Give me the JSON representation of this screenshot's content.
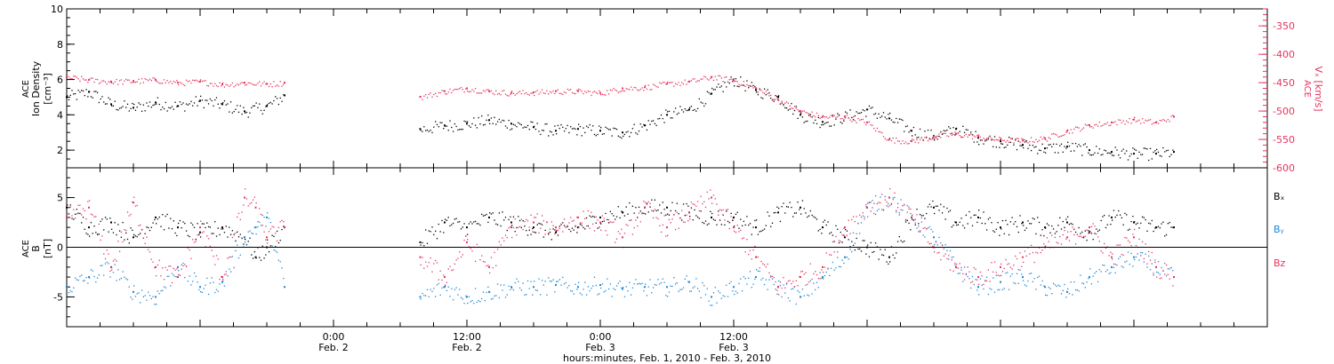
{
  "chart_data": [
    {
      "type": "scatter",
      "panel": "top",
      "ylabel_left": [
        "ACE",
        "Ion Density",
        "[cm⁻³]"
      ],
      "ylim_left": [
        1,
        10
      ],
      "yticks_left": [
        "2",
        "4",
        "6",
        "8",
        "10"
      ],
      "ylabel_right": [
        "ACE",
        "Vₓ [km/s]"
      ],
      "ylim_right": [
        -600,
        -320
      ],
      "yticks_right": [
        "-350",
        "-400",
        "-450",
        "-500",
        "-550",
        "-600"
      ],
      "grid": false,
      "data_gap_hours": [
        19.6,
        31.8
      ],
      "series": [
        {
          "name": "ACE Ion Density",
          "axis": "left",
          "color": "#000000",
          "x_hours": [
            0,
            2,
            4,
            6,
            8,
            10,
            12,
            14,
            16,
            18,
            19.6,
            31.8,
            34,
            36,
            38,
            40,
            42,
            44,
            46,
            48,
            50,
            52,
            54,
            56,
            58,
            60,
            62,
            64,
            66,
            68,
            70,
            72,
            74,
            76,
            78,
            80,
            82,
            84,
            86,
            88,
            90,
            92,
            94,
            96,
            98,
            99.6
          ],
          "y": [
            5.0,
            5.3,
            4.6,
            4.4,
            4.7,
            4.5,
            4.8,
            4.6,
            4.2,
            4.5,
            5.1,
            3.2,
            3.4,
            3.5,
            3.7,
            3.5,
            3.3,
            3.1,
            3.2,
            3.1,
            3.0,
            3.4,
            4.0,
            4.3,
            5.2,
            6.0,
            5.4,
            5.0,
            4.0,
            3.6,
            3.9,
            4.3,
            3.8,
            3.1,
            2.8,
            3.2,
            2.7,
            2.5,
            2.3,
            2.1,
            2.2,
            2.0,
            1.9,
            1.8,
            1.8,
            1.9
          ]
        },
        {
          "name": "ACE Vx",
          "axis": "right",
          "color": "#e8345f",
          "x_hours": [
            0,
            2,
            4,
            6,
            8,
            10,
            12,
            14,
            16,
            18,
            19.6,
            31.8,
            34,
            36,
            38,
            40,
            42,
            44,
            46,
            48,
            50,
            52,
            54,
            56,
            58,
            60,
            62,
            64,
            66,
            68,
            70,
            72,
            74,
            76,
            78,
            80,
            82,
            84,
            86,
            88,
            90,
            92,
            94,
            96,
            98,
            99.6
          ],
          "y": [
            -440,
            -445,
            -448,
            -447,
            -445,
            -450,
            -448,
            -453,
            -450,
            -452,
            -450,
            -475,
            -465,
            -460,
            -465,
            -468,
            -467,
            -465,
            -465,
            -468,
            -460,
            -458,
            -452,
            -448,
            -440,
            -445,
            -460,
            -480,
            -500,
            -510,
            -510,
            -520,
            -550,
            -553,
            -545,
            -540,
            -545,
            -550,
            -552,
            -548,
            -535,
            -525,
            -520,
            -515,
            -520,
            -510
          ]
        }
      ]
    },
    {
      "type": "scatter",
      "panel": "bottom",
      "ylabel": [
        "ACE",
        "B",
        "[nT]"
      ],
      "ylim": [
        -8,
        8
      ],
      "yticks": [
        "5",
        "0",
        "-5"
      ],
      "zero_line": true,
      "grid": false,
      "legend": {
        "placement": "right",
        "entries": [
          "Bₓ",
          "Bᵧ",
          "Bz"
        ]
      },
      "data_gap_hours": [
        19.6,
        31.8
      ],
      "series": [
        {
          "name": "Bₓ",
          "color": "#000000",
          "x_hours": [
            0,
            2,
            4,
            6,
            8,
            10,
            12,
            14,
            16,
            17,
            18,
            19.6,
            31.8,
            34,
            36,
            38,
            40,
            42,
            44,
            46,
            48,
            50,
            52,
            54,
            56,
            58,
            60,
            62,
            64,
            66,
            68,
            70,
            72,
            74,
            76,
            78,
            80,
            82,
            84,
            86,
            88,
            90,
            92,
            94,
            96,
            98,
            99.6
          ],
          "y": [
            4,
            2,
            2.5,
            1,
            3,
            2,
            1.5,
            2,
            1,
            -1,
            0,
            2,
            0.5,
            2.5,
            2,
            3,
            2.5,
            2,
            1.5,
            2,
            3,
            3.5,
            4,
            4,
            3.5,
            3,
            3,
            2,
            3.5,
            4,
            2,
            1,
            0,
            -1,
            3,
            4,
            2.5,
            3,
            2,
            2.5,
            2,
            2.5,
            1.5,
            3,
            2.5,
            2,
            2
          ]
        },
        {
          "name": "Bᵧ",
          "color": "#1c87d6",
          "x_hours": [
            0,
            2,
            4,
            6,
            8,
            10,
            12,
            14,
            16,
            17,
            18,
            19.6,
            31.8,
            34,
            36,
            38,
            40,
            42,
            44,
            46,
            48,
            50,
            52,
            54,
            56,
            58,
            60,
            62,
            64,
            66,
            68,
            70,
            72,
            74,
            76,
            78,
            80,
            82,
            84,
            86,
            88,
            90,
            92,
            94,
            96,
            98,
            99.6
          ],
          "y": [
            -4,
            -3,
            -2,
            -4.5,
            -5,
            -2,
            -4,
            -3.5,
            1,
            2,
            3,
            -4,
            -5,
            -4,
            -5,
            -4.5,
            -4,
            -4,
            -3.8,
            -4,
            -3.8,
            -4.2,
            -4,
            -4,
            -3.5,
            -5,
            -4,
            -3,
            -4,
            -5,
            -3,
            -1,
            4,
            5,
            3,
            1,
            -2,
            -4,
            -3.5,
            -3,
            -4,
            -4.5,
            -3,
            -2,
            -1,
            -2,
            -3
          ]
        },
        {
          "name": "Bz",
          "color": "#e8345f",
          "x_hours": [
            0,
            2,
            4,
            6,
            8,
            10,
            12,
            14,
            16,
            17,
            18,
            19.6,
            31.8,
            34,
            36,
            38,
            40,
            42,
            44,
            46,
            48,
            50,
            52,
            54,
            56,
            58,
            60,
            62,
            64,
            66,
            68,
            70,
            72,
            74,
            76,
            78,
            80,
            82,
            84,
            86,
            88,
            90,
            92,
            94,
            96,
            98,
            99.6
          ],
          "y": [
            3,
            4,
            -2,
            4.5,
            -2,
            -3,
            2,
            -3,
            5,
            4,
            1,
            2,
            -1,
            -3,
            0.5,
            -2,
            2,
            2.5,
            2,
            3,
            2.5,
            1,
            4,
            2,
            3.5,
            5,
            2,
            -1,
            -4,
            -3,
            -2,
            2,
            4,
            5,
            3,
            0,
            -2,
            -3,
            -2,
            -1,
            0,
            1,
            2,
            -1,
            1,
            -2,
            -3
          ]
        }
      ]
    }
  ],
  "xaxis": {
    "ticks": [
      {
        "hours": 24,
        "time": "0:00",
        "date": "Feb. 2"
      },
      {
        "hours": 36,
        "time": "12:00",
        "date": "Feb. 2"
      },
      {
        "hours": 48,
        "time": "0:00",
        "date": "Feb. 3"
      },
      {
        "hours": 60,
        "time": "12:00",
        "date": "Feb. 3"
      }
    ],
    "xlabel": "hours:minutes, Feb.  1, 2010 - Feb.  3, 2010"
  }
}
